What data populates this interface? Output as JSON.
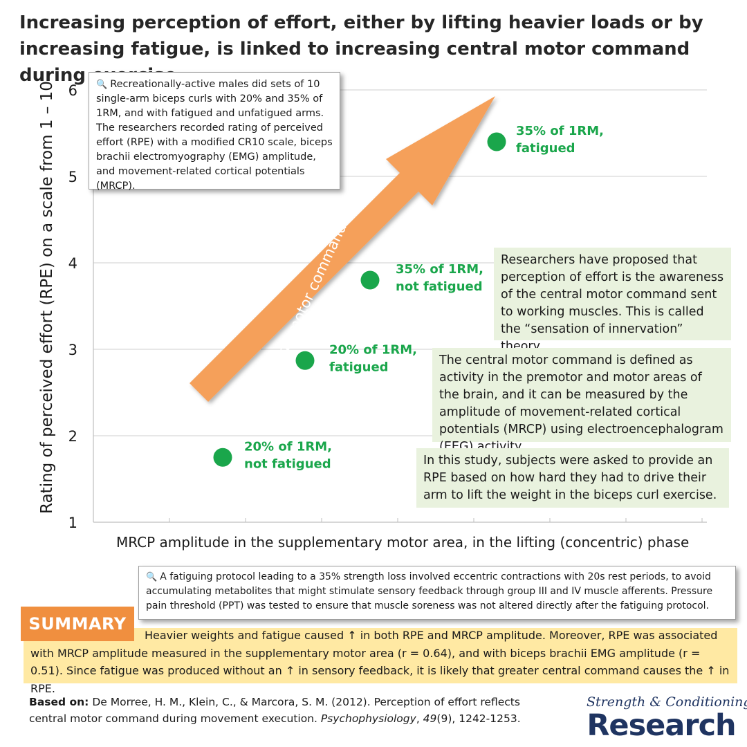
{
  "title": "Increasing perception of effort, either by lifting heavier loads or by increasing fatigue, is linked to increasing central motor command during exercise",
  "chart_data": {
    "type": "scatter",
    "ylabel": "Rating of perceived effort (RPE) on a scale from 1 – 10",
    "xlabel": "MRCP amplitude in the supplementary motor area, in the lifting (concentric) phase",
    "ylim": [
      1,
      6
    ],
    "yticks": [
      "1",
      "2",
      "3",
      "4",
      "5",
      "6"
    ],
    "grid": "horizontal",
    "point_color": "#1aa64b",
    "points": [
      {
        "x": 1,
        "y": 1.75,
        "label_line1": "20% of 1RM,",
        "label_line2": "not fatigued"
      },
      {
        "x": 2,
        "y": 2.87,
        "label_line1": "20% of 1RM,",
        "label_line2": "fatigued"
      },
      {
        "x": 3,
        "y": 3.8,
        "label_line1": "35% of 1RM,",
        "label_line2": "not fatigued"
      },
      {
        "x": 4,
        "y": 5.4,
        "label_line1": "35% of 1RM,",
        "label_line2": "fatigued"
      }
    ],
    "arrow_label": "Central motor command ↑ with ↑ RPE",
    "arrow_color": "#f5a05a"
  },
  "method_box": "Recreationally-active males did sets of 10 single-arm biceps curls with 20% and 35% of 1RM, and with fatigued and unfatigued arms. The researchers recorded rating of perceived effort (RPE) with a modified CR10 scale, biceps brachii electromyography (EMG) amplitude, and movement-related cortical potentials (MRCP).",
  "note_theory": "Researchers have proposed that perception of effort is the awareness of the central motor command sent to working muscles. This is called the “sensation of innervation” theory.",
  "note_definition": "The central motor command is defined as activity in the premotor and motor areas of the brain, and it can be measured by the amplitude of movement-related cortical potentials (MRCP) using electroencephalogram (EEG) activity.",
  "note_study": "In this study, subjects were asked to provide an RPE based on how hard they had to drive their arm to lift the weight in the biceps curl exercise.",
  "protocol_box": "A fatiguing protocol leading to a 35% strength loss involved eccentric contractions with 20s rest periods, to avoid accumulating metabolites that might stimulate sensory feedback through group III and IV muscle afferents. Pressure pain threshold (PPT) was tested to ensure that muscle soreness was not altered directly after the fatiguing protocol.",
  "summary": {
    "label": "SUMMARY",
    "text": "Heavier weights and fatigue caused ↑ in both RPE and MRCP amplitude. Moreover, RPE was associated with MRCP amplitude measured in the supplementary motor area (r = 0.64), and with biceps brachii EMG amplitude (r = 0.51). Since fatigue was produced without an ↑ in sensory feedback, it is likely that greater central command causes the ↑ in RPE."
  },
  "reference": {
    "prefix": "Based on:",
    "authors": " De Morree, H. M., Klein, C., & Marcora, S. M. (2012). Perception of effort reflects central motor command during movement execution. ",
    "journal": "Psychophysiology",
    "sep1": ", ",
    "volume": "49",
    "rest": "(9), 1242-1253."
  },
  "logo": {
    "top": "Strength & Conditioning",
    "bottom": "Research"
  },
  "colors": {
    "summary_tag": "#f08f3f",
    "summary_band": "#ffe9a3",
    "note_bg": "#e9f2de",
    "logo": "#1f3461"
  }
}
